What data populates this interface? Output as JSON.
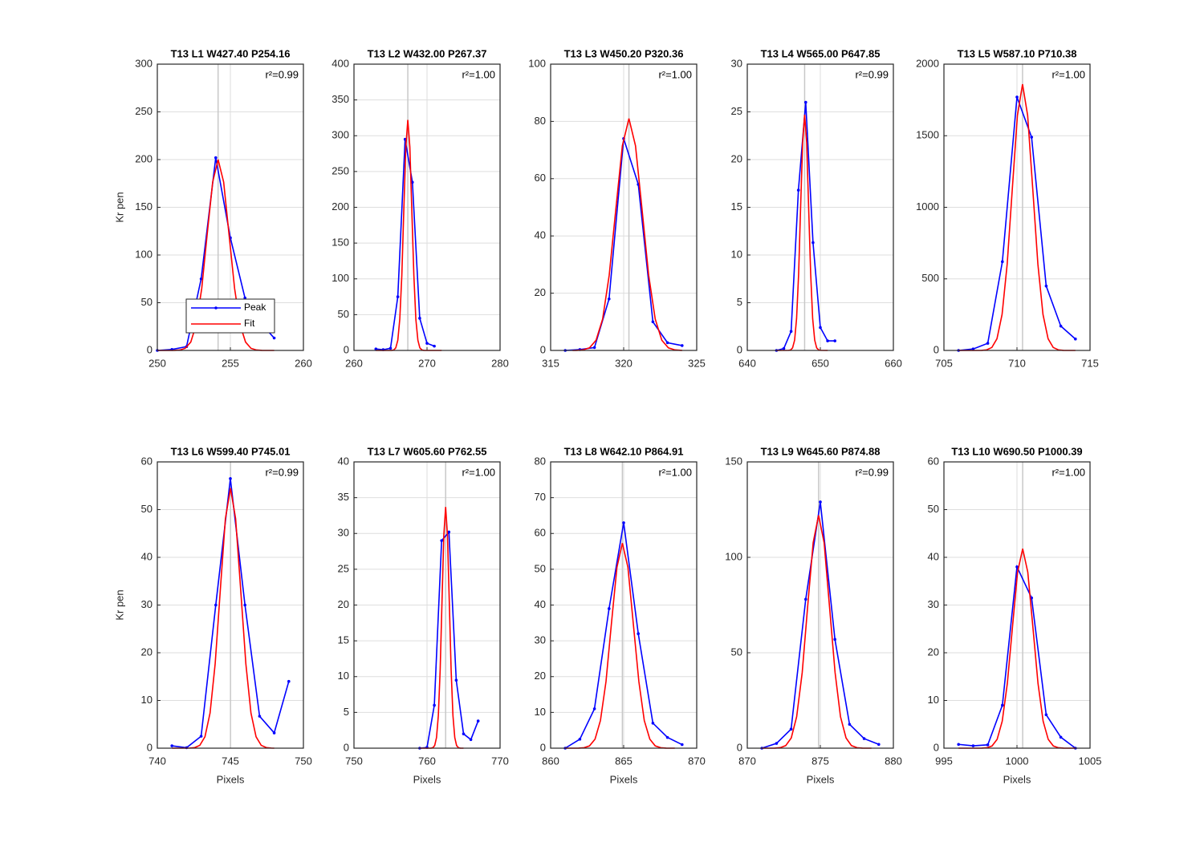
{
  "chart_data": [
    {
      "type": "line",
      "title": "T13 L1 W427.40 P254.16",
      "annotation": "r²=0.99",
      "ylabel": "Kr pen",
      "vline": 254.16,
      "grid": true,
      "legend": "south",
      "xlim": [
        250,
        260
      ],
      "xticks": [
        250,
        255,
        260
      ],
      "ylim": [
        0,
        300
      ],
      "yticks": [
        0,
        50,
        100,
        150,
        200,
        250,
        300
      ],
      "series": [
        {
          "name": "Peak",
          "color": "#0000ff",
          "marker": true,
          "x": [
            250,
            251,
            252,
            253,
            254,
            255,
            256,
            257,
            258
          ],
          "values": [
            0,
            1,
            4,
            75,
            202,
            118,
            55,
            30,
            13
          ]
        },
        {
          "name": "Fit",
          "color": "#ff0000",
          "marker": false,
          "x": [
            250,
            251.16,
            251.54,
            251.91,
            252.29,
            252.66,
            253.04,
            253.41,
            253.79,
            254.16,
            254.54,
            254.91,
            255.29,
            255.66,
            256.04,
            256.41,
            256.79,
            257.16,
            258
          ],
          "values": [
            0,
            0.06,
            0.44,
            2.22,
            8.78,
            27.06,
            64.94,
            121.3,
            176.5,
            200,
            176.5,
            121.3,
            64.94,
            27.06,
            8.78,
            2.22,
            0.44,
            0.06,
            0
          ]
        }
      ]
    },
    {
      "type": "line",
      "title": "T13 L2 W432.00 P267.37",
      "annotation": "r²=1.00",
      "vline": 267.37,
      "grid": true,
      "xlim": [
        260,
        280
      ],
      "xticks": [
        260,
        270,
        280
      ],
      "ylim": [
        0,
        400
      ],
      "yticks": [
        0,
        50,
        100,
        150,
        200,
        250,
        300,
        350,
        400
      ],
      "series": [
        {
          "color": "#0000ff",
          "marker": true,
          "x": [
            263,
            264,
            265,
            266,
            267,
            268,
            269,
            270,
            271
          ],
          "values": [
            2,
            1,
            3,
            75,
            295,
            235,
            45,
            10,
            6
          ]
        },
        {
          "color": "#ff0000",
          "marker": false,
          "x": [
            263,
            265.17,
            265.45,
            265.72,
            266.0,
            266.27,
            266.55,
            266.82,
            267.1,
            267.37,
            267.65,
            267.92,
            268.2,
            268.47,
            268.75,
            269.02,
            269.3,
            269.57,
            272
          ],
          "values": [
            0,
            0.1,
            0.71,
            3.57,
            14.14,
            43.57,
            104.55,
            195.29,
            284.17,
            322,
            284.17,
            195.29,
            104.55,
            43.57,
            14.14,
            3.57,
            0.71,
            0.1,
            0
          ]
        }
      ]
    },
    {
      "type": "line",
      "title": "T13 L3 W450.20 P320.36",
      "annotation": "r²=1.00",
      "vline": 320.36,
      "grid": true,
      "xlim": [
        315,
        325
      ],
      "xticks": [
        315,
        320,
        325
      ],
      "ylim": [
        0,
        100
      ],
      "yticks": [
        0,
        20,
        40,
        60,
        80,
        100
      ],
      "series": [
        {
          "color": "#0000ff",
          "marker": true,
          "x": [
            316,
            317,
            318,
            319,
            320,
            321,
            322,
            323,
            324
          ],
          "values": [
            0,
            0.3,
            1,
            18,
            74,
            58,
            10,
            2.7,
            1.7
          ]
        },
        {
          "color": "#ff0000",
          "marker": false,
          "x": [
            316.5,
            316.76,
            317.21,
            317.66,
            318.11,
            318.56,
            319.01,
            319.46,
            319.91,
            320.36,
            320.81,
            321.26,
            321.71,
            322.16,
            322.61,
            323.06,
            323.51,
            323.96,
            324
          ],
          "values": [
            0,
            0.02,
            0.18,
            0.9,
            3.56,
            10.96,
            26.3,
            49.13,
            71.48,
            81,
            71.48,
            49.13,
            26.3,
            10.96,
            3.56,
            0.9,
            0.18,
            0.02,
            0
          ]
        }
      ]
    },
    {
      "type": "line",
      "title": "T13 L4 W565.00 P647.85",
      "annotation": "r²=0.99",
      "vline": 647.85,
      "grid": true,
      "xlim": [
        640,
        660
      ],
      "xticks": [
        640,
        650,
        660
      ],
      "ylim": [
        0,
        30
      ],
      "yticks": [
        0,
        5,
        10,
        15,
        20,
        25,
        30
      ],
      "series": [
        {
          "color": "#0000ff",
          "marker": true,
          "x": [
            644,
            645,
            646,
            647,
            648,
            649,
            650,
            651,
            652
          ],
          "values": [
            0,
            0.2,
            2,
            16.8,
            26,
            11.3,
            2.4,
            1,
            1
          ]
        },
        {
          "color": "#ff0000",
          "marker": false,
          "x": [
            644,
            645.65,
            645.93,
            646.2,
            646.48,
            646.75,
            647.03,
            647.3,
            647.58,
            647.85,
            648.13,
            648.4,
            648.68,
            648.95,
            649.23,
            649.5,
            649.78,
            650.05,
            651
          ],
          "values": [
            0,
            0.01,
            0.05,
            0.27,
            1.08,
            3.34,
            8.02,
            14.98,
            21.8,
            24.7,
            21.8,
            14.98,
            8.02,
            3.34,
            1.08,
            0.27,
            0.05,
            0.01,
            0
          ]
        }
      ]
    },
    {
      "type": "line",
      "title": "T13 L5 W587.10 P710.38",
      "annotation": "r²=1.00",
      "vline": 710.38,
      "grid": true,
      "xlim": [
        705,
        715
      ],
      "xticks": [
        705,
        710,
        715
      ],
      "ylim": [
        0,
        2000
      ],
      "yticks": [
        0,
        500,
        1000,
        1500,
        2000
      ],
      "series": [
        {
          "color": "#0000ff",
          "marker": true,
          "x": [
            706,
            707,
            708,
            709,
            710,
            711,
            712,
            713,
            714
          ],
          "values": [
            0,
            10,
            50,
            620,
            1770,
            1490,
            450,
            170,
            80
          ]
        },
        {
          "color": "#ff0000",
          "marker": false,
          "x": [
            706,
            707.58,
            707.93,
            708.28,
            708.63,
            708.98,
            709.33,
            709.68,
            710.03,
            710.38,
            710.73,
            711.08,
            711.43,
            711.78,
            712.13,
            712.48,
            712.83,
            713.18,
            714
          ],
          "values": [
            0,
            0.56,
            4.09,
            20.65,
            81.65,
            251.66,
            603.94,
            1128.09,
            1641.45,
            1860,
            1641.45,
            1128.09,
            603.94,
            251.66,
            81.65,
            20.65,
            4.09,
            0.56,
            0
          ]
        }
      ]
    },
    {
      "type": "line",
      "title": "T13 L6 W599.40 P745.01",
      "annotation": "r²=0.99",
      "ylabel": "Kr pen",
      "xlabel": "Pixels",
      "vline": 745.01,
      "grid": true,
      "xlim": [
        740,
        750
      ],
      "xticks": [
        740,
        745,
        750
      ],
      "ylim": [
        0,
        60
      ],
      "yticks": [
        0,
        10,
        20,
        30,
        40,
        50,
        60
      ],
      "series": [
        {
          "color": "#0000ff",
          "marker": true,
          "x": [
            741,
            742,
            743,
            744,
            745,
            746,
            747,
            748,
            749
          ],
          "values": [
            0.5,
            0.1,
            2.5,
            30,
            56.5,
            30,
            6.7,
            3.2,
            14
          ]
        },
        {
          "color": "#ff0000",
          "marker": false,
          "x": [
            741,
            742.21,
            742.56,
            742.91,
            743.26,
            743.61,
            743.96,
            744.31,
            744.66,
            745.01,
            745.36,
            745.71,
            746.06,
            746.41,
            746.76,
            747.11,
            747.46,
            747.81,
            748
          ],
          "values": [
            0,
            0.02,
            0.12,
            0.6,
            2.39,
            7.37,
            17.7,
            33.05,
            48.1,
            54.5,
            48.1,
            33.05,
            17.7,
            7.37,
            2.39,
            0.6,
            0.12,
            0.02,
            0
          ]
        }
      ]
    },
    {
      "type": "line",
      "title": "T13 L7 W605.60 P762.55",
      "annotation": "r²=1.00",
      "xlabel": "Pixels",
      "vline": 762.55,
      "grid": true,
      "xlim": [
        750,
        770
      ],
      "xticks": [
        750,
        760,
        770
      ],
      "ylim": [
        0,
        40
      ],
      "yticks": [
        0,
        5,
        10,
        15,
        20,
        25,
        30,
        35,
        40
      ],
      "series": [
        {
          "color": "#0000ff",
          "marker": true,
          "x": [
            759,
            760,
            761,
            762,
            763,
            764,
            765,
            766,
            767
          ],
          "values": [
            0,
            0.1,
            6,
            29,
            30.2,
            9.5,
            2,
            1.2,
            3.8
          ]
        },
        {
          "color": "#ff0000",
          "marker": false,
          "x": [
            759,
            760.55,
            760.8,
            761.05,
            761.3,
            761.55,
            761.8,
            762.05,
            762.3,
            762.55,
            762.8,
            763.05,
            763.3,
            763.55,
            763.8,
            764.05,
            764.3,
            764.55,
            765
          ],
          "values": [
            0,
            0.01,
            0.07,
            0.37,
            1.48,
            4.56,
            10.94,
            20.44,
            29.74,
            33.7,
            29.74,
            20.44,
            10.94,
            4.56,
            1.48,
            0.37,
            0.07,
            0.01,
            0
          ]
        }
      ]
    },
    {
      "type": "line",
      "title": "T13 L8 W642.10 P864.91",
      "annotation": "r²=1.00",
      "xlabel": "Pixels",
      "vline": 864.91,
      "grid": true,
      "xlim": [
        860,
        870
      ],
      "xticks": [
        860,
        865,
        870
      ],
      "ylim": [
        0,
        80
      ],
      "yticks": [
        0,
        10,
        20,
        30,
        40,
        50,
        60,
        70,
        80
      ],
      "series": [
        {
          "color": "#0000ff",
          "marker": true,
          "x": [
            861,
            862,
            863,
            864,
            865,
            866,
            867,
            868,
            869
          ],
          "values": [
            0,
            2.5,
            11,
            39,
            63,
            32,
            7,
            3,
            1
          ]
        },
        {
          "color": "#ff0000",
          "marker": false,
          "x": [
            861,
            861.91,
            862.29,
            862.66,
            863.04,
            863.41,
            863.79,
            864.16,
            864.54,
            864.91,
            865.29,
            865.66,
            866.04,
            866.41,
            866.79,
            867.16,
            867.54,
            867.91,
            868.5
          ],
          "values": [
            0,
            0.02,
            0.13,
            0.64,
            2.52,
            7.75,
            18.61,
            34.75,
            50.57,
            57.3,
            50.57,
            34.75,
            18.61,
            7.75,
            2.52,
            0.64,
            0.13,
            0.02,
            0
          ]
        }
      ]
    },
    {
      "type": "line",
      "title": "T13 L9 W645.60 P874.88",
      "annotation": "r²=0.99",
      "xlabel": "Pixels",
      "vline": 874.88,
      "grid": true,
      "xlim": [
        870,
        880
      ],
      "xticks": [
        870,
        875,
        880
      ],
      "ylim": [
        0,
        150
      ],
      "yticks": [
        0,
        50,
        100,
        150
      ],
      "series": [
        {
          "color": "#0000ff",
          "marker": true,
          "x": [
            871,
            872,
            873,
            874,
            875,
            876,
            877,
            878,
            879
          ],
          "values": [
            0,
            2.5,
            10,
            78,
            129,
            57,
            12.5,
            5,
            2
          ]
        },
        {
          "color": "#ff0000",
          "marker": false,
          "x": [
            871,
            871.88,
            872.26,
            872.63,
            873.01,
            873.38,
            873.76,
            874.13,
            874.51,
            874.88,
            875.26,
            875.63,
            876.01,
            876.38,
            876.76,
            877.13,
            877.51,
            877.88,
            878.5
          ],
          "values": [
            0,
            0.04,
            0.27,
            1.35,
            5.36,
            16.51,
            39.61,
            73.99,
            107.67,
            122,
            107.67,
            73.99,
            39.61,
            16.51,
            5.36,
            1.35,
            0.27,
            0.04,
            0
          ]
        }
      ]
    },
    {
      "type": "line",
      "title": "T13 L10 W690.50 P1000.39",
      "annotation": "r²=1.00",
      "xlabel": "Pixels",
      "vline": 1000.39,
      "grid": true,
      "xlim": [
        995,
        1005
      ],
      "xticks": [
        995,
        1000,
        1005
      ],
      "ylim": [
        0,
        60
      ],
      "yticks": [
        0,
        10,
        20,
        30,
        40,
        50,
        60
      ],
      "series": [
        {
          "color": "#0000ff",
          "marker": true,
          "x": [
            996,
            997,
            998,
            999,
            1000,
            1001,
            1002,
            1003,
            1004
          ],
          "values": [
            0.8,
            0.5,
            0.7,
            9,
            38,
            31.5,
            7,
            2.3,
            0
          ]
        },
        {
          "color": "#ff0000",
          "marker": false,
          "x": [
            996,
            997.59,
            997.94,
            998.29,
            998.64,
            998.99,
            999.34,
            999.69,
            1000.04,
            1000.39,
            1000.74,
            1001.09,
            1001.44,
            1001.79,
            1002.14,
            1002.49,
            1002.84,
            1003.19,
            1004
          ],
          "values": [
            0,
            0.01,
            0.09,
            0.46,
            1.84,
            5.66,
            13.57,
            25.35,
            36.89,
            41.8,
            36.89,
            25.35,
            13.57,
            5.66,
            1.84,
            0.46,
            0.09,
            0.01,
            0
          ]
        }
      ]
    }
  ]
}
